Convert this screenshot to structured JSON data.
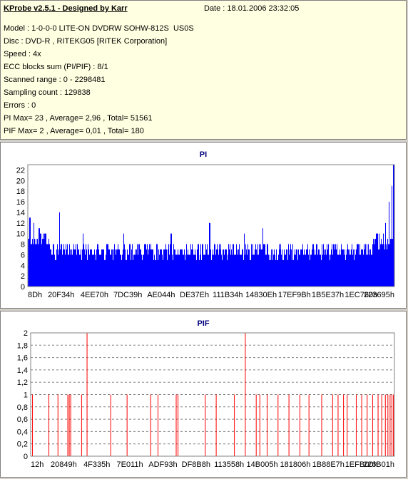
{
  "info": {
    "title": "KProbe v2.5.1 - Designed by Karr",
    "date": "Date : 18.01.2006 23:32:05",
    "lines": [
      "Model : 1-0-0-0 LITE-ON DVDRW SOHW-812S  US0S",
      "Disc : DVD-R , RITEKG05 [RiTEK Corporation]",
      "Speed : 4x",
      "ECC blocks sum (PI/PIF) : 8/1",
      "Scanned range : 0 - 2298481",
      "Sampling count : 129838",
      "Errors : 0",
      "PI Max= 23 , Average= 2,96 , Total= 51561",
      "PIF Max= 2 , Average= 0,01 , Total= 180"
    ]
  },
  "colors": {
    "pi": "#0000ff",
    "pif": "#ff0000",
    "title": "#000080",
    "info_bg": "#ffffe1"
  },
  "chart_data": [
    {
      "type": "bar",
      "title": "PI",
      "ylim": [
        0,
        23
      ],
      "y_ticks": [
        "0",
        "2",
        "4",
        "6",
        "8",
        "10",
        "12",
        "14",
        "16",
        "18",
        "20",
        "22"
      ],
      "y_tick_values": [
        0,
        2,
        4,
        6,
        8,
        10,
        12,
        14,
        16,
        18,
        20,
        22
      ],
      "x_tick_labels": [
        "8Dh",
        "20F34h",
        "4EE70h",
        "7DC39h",
        "AE044h",
        "DE37Eh",
        "111B34h",
        "14830Eh",
        "17EF9Bh",
        "1B5E37h",
        "1EC760h",
        "223695h"
      ],
      "grid": false,
      "baseline": 6,
      "peaks": [
        {
          "pos": 0.005,
          "value": 13
        },
        {
          "pos": 0.015,
          "value": 12
        },
        {
          "pos": 0.03,
          "value": 11
        },
        {
          "pos": 0.085,
          "value": 14
        },
        {
          "pos": 0.15,
          "value": 10
        },
        {
          "pos": 0.26,
          "value": 10
        },
        {
          "pos": 0.39,
          "value": 10
        },
        {
          "pos": 0.495,
          "value": 12
        },
        {
          "pos": 0.59,
          "value": 10
        },
        {
          "pos": 0.64,
          "value": 11
        },
        {
          "pos": 0.95,
          "value": 10
        },
        {
          "pos": 0.975,
          "value": 12
        },
        {
          "pos": 0.985,
          "value": 16
        },
        {
          "pos": 0.992,
          "value": 19
        },
        {
          "pos": 0.997,
          "value": 23
        }
      ]
    },
    {
      "type": "bar",
      "title": "PIF",
      "ylim": [
        0,
        2
      ],
      "y_ticks": [
        "0",
        "0,2",
        "0,4",
        "0,6",
        "0,8",
        "1",
        "1,2",
        "1,4",
        "1,6",
        "1,8",
        "2"
      ],
      "y_tick_values": [
        0,
        0.2,
        0.4,
        0.6,
        0.8,
        1,
        1.2,
        1.4,
        1.6,
        1.8,
        2
      ],
      "x_tick_labels": [
        "12h",
        "20849h",
        "4F335h",
        "7E011h",
        "ADF93h",
        "DF8B8h",
        "113558h",
        "14B005h",
        "181806h",
        "1B88E7h",
        "1EFB00h",
        "226B01h"
      ],
      "grid": "dashed-horizontal",
      "spikes": [
        {
          "pos": 0.005,
          "value": 1
        },
        {
          "pos": 0.05,
          "value": 1
        },
        {
          "pos": 0.075,
          "value": 1
        },
        {
          "pos": 0.102,
          "value": 1
        },
        {
          "pos": 0.106,
          "value": 1
        },
        {
          "pos": 0.11,
          "value": 1
        },
        {
          "pos": 0.14,
          "value": 1
        },
        {
          "pos": 0.155,
          "value": 2
        },
        {
          "pos": 0.22,
          "value": 1
        },
        {
          "pos": 0.265,
          "value": 1
        },
        {
          "pos": 0.33,
          "value": 1
        },
        {
          "pos": 0.35,
          "value": 1
        },
        {
          "pos": 0.4,
          "value": 1
        },
        {
          "pos": 0.405,
          "value": 1
        },
        {
          "pos": 0.48,
          "value": 1
        },
        {
          "pos": 0.51,
          "value": 1
        },
        {
          "pos": 0.56,
          "value": 1
        },
        {
          "pos": 0.59,
          "value": 2
        },
        {
          "pos": 0.62,
          "value": 1
        },
        {
          "pos": 0.63,
          "value": 1
        },
        {
          "pos": 0.65,
          "value": 1
        },
        {
          "pos": 0.68,
          "value": 1
        },
        {
          "pos": 0.71,
          "value": 1
        },
        {
          "pos": 0.74,
          "value": 1
        },
        {
          "pos": 0.765,
          "value": 1
        },
        {
          "pos": 0.8,
          "value": 1
        },
        {
          "pos": 0.83,
          "value": 1
        },
        {
          "pos": 0.845,
          "value": 1
        },
        {
          "pos": 0.86,
          "value": 1
        },
        {
          "pos": 0.87,
          "value": 1
        },
        {
          "pos": 0.895,
          "value": 1
        },
        {
          "pos": 0.91,
          "value": 1
        },
        {
          "pos": 0.925,
          "value": 1
        },
        {
          "pos": 0.94,
          "value": 1
        },
        {
          "pos": 0.955,
          "value": 1
        },
        {
          "pos": 0.965,
          "value": 1
        },
        {
          "pos": 0.975,
          "value": 1
        },
        {
          "pos": 0.982,
          "value": 1
        },
        {
          "pos": 0.988,
          "value": 1
        },
        {
          "pos": 0.993,
          "value": 1
        },
        {
          "pos": 0.997,
          "value": 1
        }
      ]
    }
  ]
}
